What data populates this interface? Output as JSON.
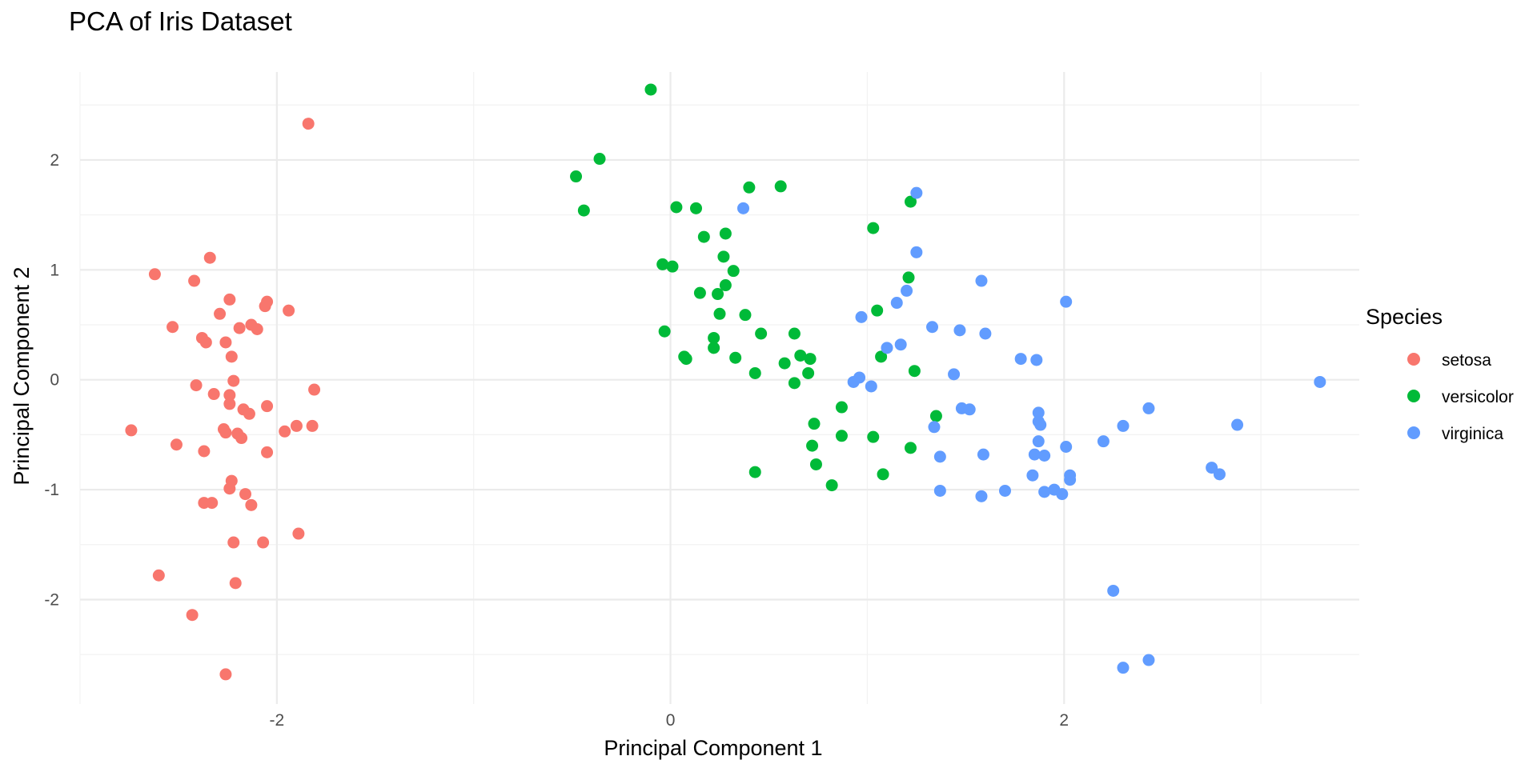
{
  "chart_data": {
    "type": "scatter",
    "title": "PCA of Iris Dataset",
    "xlabel": "Principal Component 1",
    "ylabel": "Principal Component 2",
    "xlim": [
      -3.0,
      3.5
    ],
    "ylim": [
      -2.95,
      2.8
    ],
    "x_ticks": [
      -2,
      0,
      2
    ],
    "y_ticks": [
      -2,
      -1,
      0,
      1,
      2
    ],
    "grid": true,
    "legend": {
      "title": "Species",
      "position": "right"
    },
    "series": [
      {
        "name": "setosa",
        "color": "#F8766D",
        "points": [
          [
            -1.84,
            2.33
          ],
          [
            -2.34,
            1.11
          ],
          [
            -2.62,
            0.96
          ],
          [
            -2.42,
            0.9
          ],
          [
            -2.24,
            0.73
          ],
          [
            -2.05,
            0.71
          ],
          [
            -2.06,
            0.67
          ],
          [
            -1.94,
            0.63
          ],
          [
            -2.29,
            0.6
          ],
          [
            -2.13,
            0.5
          ],
          [
            -2.19,
            0.47
          ],
          [
            -2.53,
            0.48
          ],
          [
            -2.1,
            0.46
          ],
          [
            -2.38,
            0.38
          ],
          [
            -2.36,
            0.34
          ],
          [
            -2.26,
            0.34
          ],
          [
            -2.23,
            0.21
          ],
          [
            -2.22,
            -0.01
          ],
          [
            -2.41,
            -0.05
          ],
          [
            -1.81,
            -0.09
          ],
          [
            -2.32,
            -0.13
          ],
          [
            -2.24,
            -0.14
          ],
          [
            -2.24,
            -0.22
          ],
          [
            -2.05,
            -0.24
          ],
          [
            -2.17,
            -0.27
          ],
          [
            -2.14,
            -0.31
          ],
          [
            -1.82,
            -0.42
          ],
          [
            -1.9,
            -0.42
          ],
          [
            -2.27,
            -0.45
          ],
          [
            -2.74,
            -0.46
          ],
          [
            -1.96,
            -0.47
          ],
          [
            -2.26,
            -0.48
          ],
          [
            -2.2,
            -0.49
          ],
          [
            -2.18,
            -0.53
          ],
          [
            -2.51,
            -0.59
          ],
          [
            -2.37,
            -0.65
          ],
          [
            -2.05,
            -0.66
          ],
          [
            -2.23,
            -0.92
          ],
          [
            -2.24,
            -0.99
          ],
          [
            -2.16,
            -1.04
          ],
          [
            -2.37,
            -1.12
          ],
          [
            -2.33,
            -1.12
          ],
          [
            -2.13,
            -1.14
          ],
          [
            -1.89,
            -1.4
          ],
          [
            -2.22,
            -1.48
          ],
          [
            -2.07,
            -1.48
          ],
          [
            -2.6,
            -1.78
          ],
          [
            -2.21,
            -1.85
          ],
          [
            -2.43,
            -2.14
          ],
          [
            -2.26,
            -2.68
          ]
        ]
      },
      {
        "name": "versicolor",
        "color": "#00BA38",
        "points": [
          [
            -0.1,
            2.64
          ],
          [
            -0.36,
            2.01
          ],
          [
            -0.48,
            1.85
          ],
          [
            -0.44,
            1.54
          ],
          [
            0.4,
            1.75
          ],
          [
            0.56,
            1.76
          ],
          [
            0.03,
            1.57
          ],
          [
            0.13,
            1.56
          ],
          [
            1.22,
            1.62
          ],
          [
            1.03,
            1.38
          ],
          [
            0.28,
            1.33
          ],
          [
            0.17,
            1.3
          ],
          [
            0.27,
            1.12
          ],
          [
            -0.04,
            1.05
          ],
          [
            0.01,
            1.03
          ],
          [
            0.32,
            0.99
          ],
          [
            1.21,
            0.93
          ],
          [
            0.28,
            0.86
          ],
          [
            0.15,
            0.79
          ],
          [
            0.24,
            0.78
          ],
          [
            1.05,
            0.63
          ],
          [
            0.25,
            0.6
          ],
          [
            0.38,
            0.59
          ],
          [
            -0.03,
            0.44
          ],
          [
            0.46,
            0.42
          ],
          [
            0.63,
            0.42
          ],
          [
            0.22,
            0.38
          ],
          [
            0.22,
            0.29
          ],
          [
            0.07,
            0.21
          ],
          [
            0.08,
            0.19
          ],
          [
            1.07,
            0.21
          ],
          [
            0.33,
            0.2
          ],
          [
            0.66,
            0.22
          ],
          [
            0.71,
            0.19
          ],
          [
            0.58,
            0.15
          ],
          [
            1.24,
            0.08
          ],
          [
            0.43,
            0.06
          ],
          [
            0.7,
            0.06
          ],
          [
            0.63,
            -0.03
          ],
          [
            1.35,
            -0.33
          ],
          [
            0.87,
            -0.25
          ],
          [
            0.73,
            -0.4
          ],
          [
            0.87,
            -0.51
          ],
          [
            1.03,
            -0.52
          ],
          [
            0.72,
            -0.6
          ],
          [
            1.22,
            -0.62
          ],
          [
            0.74,
            -0.77
          ],
          [
            0.43,
            -0.84
          ],
          [
            1.08,
            -0.86
          ],
          [
            0.82,
            -0.96
          ]
        ]
      },
      {
        "name": "virginica",
        "color": "#619CFF",
        "points": [
          [
            1.25,
            1.7
          ],
          [
            0.37,
            1.56
          ],
          [
            1.25,
            1.16
          ],
          [
            1.58,
            0.9
          ],
          [
            1.2,
            0.81
          ],
          [
            2.01,
            0.71
          ],
          [
            1.15,
            0.7
          ],
          [
            0.97,
            0.57
          ],
          [
            1.33,
            0.48
          ],
          [
            1.47,
            0.45
          ],
          [
            1.6,
            0.42
          ],
          [
            1.17,
            0.32
          ],
          [
            1.1,
            0.29
          ],
          [
            1.78,
            0.19
          ],
          [
            1.86,
            0.18
          ],
          [
            1.44,
            0.05
          ],
          [
            0.96,
            0.02
          ],
          [
            0.93,
            -0.02
          ],
          [
            1.02,
            -0.06
          ],
          [
            3.3,
            -0.02
          ],
          [
            2.43,
            -0.26
          ],
          [
            1.48,
            -0.26
          ],
          [
            1.52,
            -0.27
          ],
          [
            1.87,
            -0.3
          ],
          [
            1.87,
            -0.38
          ],
          [
            1.88,
            -0.41
          ],
          [
            2.88,
            -0.41
          ],
          [
            2.3,
            -0.42
          ],
          [
            1.34,
            -0.43
          ],
          [
            2.2,
            -0.56
          ],
          [
            1.87,
            -0.56
          ],
          [
            2.01,
            -0.61
          ],
          [
            1.85,
            -0.68
          ],
          [
            1.9,
            -0.69
          ],
          [
            1.37,
            -0.7
          ],
          [
            1.59,
            -0.68
          ],
          [
            2.75,
            -0.8
          ],
          [
            2.79,
            -0.86
          ],
          [
            1.84,
            -0.87
          ],
          [
            2.03,
            -0.87
          ],
          [
            2.03,
            -0.91
          ],
          [
            1.37,
            -1.01
          ],
          [
            1.7,
            -1.01
          ],
          [
            1.95,
            -1.0
          ],
          [
            1.99,
            -1.04
          ],
          [
            1.58,
            -1.06
          ],
          [
            2.25,
            -1.92
          ],
          [
            2.3,
            -2.62
          ],
          [
            2.43,
            -2.55
          ],
          [
            1.9,
            -1.02
          ]
        ]
      }
    ]
  }
}
